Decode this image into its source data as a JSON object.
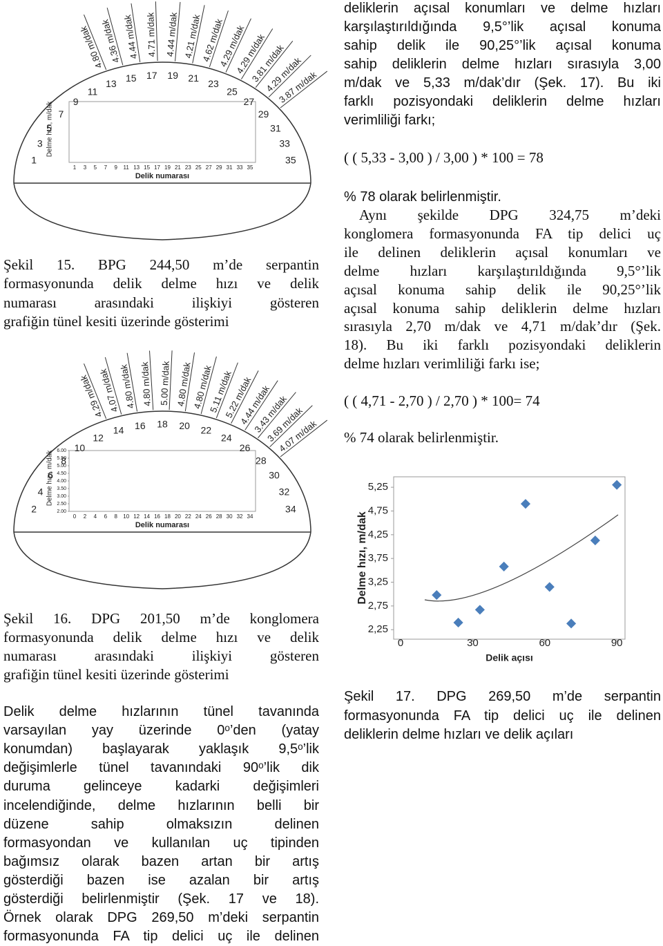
{
  "right_column": {
    "paragraph_1": [
      "deliklerin açısal konumları ve delme hızları",
      "karşılaştırıldığında 9,5°’lik açısal konuma",
      "sahip delik ile 90,25°’lik açısal konuma",
      "sahip deliklerin delme hızları sırasıyla 3,00",
      "m/dak ve 5,33 m/dak’dır (Şek. 17). Bu iki",
      "farklı pozisyondaki deliklerin delme hızları",
      "verimliliği farkı;"
    ],
    "formula_1": "( ( 5,33 - 3,00 ) / 3,00 ) * 100 = 78",
    "result_1": "% 78 olarak belirlenmiştir.",
    "paragraph_2": [
      "Aynı şekilde DPG 324,75 m’deki",
      "konglomera formasyonunda FA tip delici uç",
      "ile delinen deliklerin açısal konumları ve",
      "delme hızları karşılaştırıldığında 9,5°’lik",
      "açısal konuma sahip delik ile 90,25°’lik",
      "açısal konuma sahip deliklerin delme hızları",
      "sırasıyla 2,70 m/dak ve 4,71 m/dak’dır (Şek.",
      "18). Bu iki farklı pozisyondaki deliklerin",
      "delme hızları verimliliği farkı ise;"
    ],
    "formula_2": "( ( 4,71 - 2,70 ) / 2,70 ) * 100= 74",
    "result_2": "% 74 olarak belirlenmiştir.",
    "figure_17_caption": [
      "Şekil 17. DPG 269,50 m’de serpantin",
      "formasyonunda FA tip delici uç ile delinen",
      "deliklerin delme hızları ve delik açıları"
    ]
  },
  "left_column": {
    "figure_15_caption": [
      "Şekil 15. BPG 244,50 m’de serpantin",
      "formasyonunda delik delme hızı ve delik",
      "numarası arasındaki ilişkiyi gösteren",
      "grafiğin tünel kesiti üzerinde gösterimi"
    ],
    "figure_16_caption": [
      "Şekil 16. DPG 201,50 m’de konglomera",
      "formasyonunda delik delme hızı ve delik",
      "numarası arasındaki ilişkiyi gösteren",
      "grafiğin tünel kesiti üzerinde gösterimi"
    ],
    "paragraph": [
      "Delik delme hızlarının tünel tavanında",
      "varsayılan yay üzerinde 0ᵒ’den (yatay",
      "konumdan) başlayarak yaklaşık 9,5ᵒ’lik",
      "değişimlerle tünel tavanındaki 90ᵒ’lik dik",
      "duruma gelinceye kadarki değişimleri",
      "incelendiğinde, delme hızlarının belli bir",
      "düzene sahip olmaksızın delinen",
      "formasyondan ve kullanılan uç tipinden",
      "bağımsız olarak bazen artan bir artış",
      "gösterdiği bazen ise azalan bir artış",
      "gösterdiği belirlenmiştir (Şek. 17 ve 18).",
      "Örnek olarak DPG 269,50 m’deki serpantin",
      "formasyonunda FA tip delici uç ile delinen"
    ]
  },
  "figure_15": {
    "hole_numbers": [
      1,
      3,
      5,
      7,
      9,
      11,
      13,
      15,
      17,
      19,
      21,
      23,
      25,
      27,
      29,
      31,
      33,
      35
    ],
    "rate_labels": [
      "4.80 m/dak",
      "4.36 m/dak",
      "4.44 m/dak",
      "4.71 m/dak",
      "4.44 m/dak",
      "4.21 m/dak",
      "4.62 m/dak",
      "4.29 m/dak",
      "4.29 m/dak",
      "3.81 m/dak",
      "4.29 m/dak",
      "3.87 m/dak"
    ],
    "x_ticks": [
      1,
      3,
      5,
      7,
      9,
      11,
      13,
      15,
      17,
      19,
      21,
      23,
      25,
      27,
      29,
      31,
      33,
      35
    ],
    "x_label": "Delik numarası",
    "y_label": "Delme hızı, m/dak"
  },
  "figure_16": {
    "hole_numbers": [
      2,
      4,
      6,
      8,
      10,
      12,
      14,
      16,
      18,
      20,
      22,
      24,
      26,
      28,
      30,
      32,
      34
    ],
    "rate_labels": [
      "4.29 m/dak",
      "4.07 m/dak",
      "4.80 m/dak",
      "4.80 m/dak",
      "5.00 m/dak",
      "4.80 m/dak",
      "4.80 m/dak",
      "5.11 m/dak",
      "5.22 m/dak",
      "4.44 m/dak",
      "3.43 m/dak",
      "3.69 m/dak",
      "4.07 m/dak"
    ],
    "x_ticks": [
      0,
      2,
      4,
      6,
      8,
      10,
      12,
      14,
      16,
      18,
      20,
      22,
      24,
      26,
      28,
      30,
      32,
      34
    ],
    "x_label": "Delik numarası",
    "y_label": "Delme hızı, m/dak",
    "ylim": [
      2,
      6
    ],
    "yticks": [
      {
        "value": 6,
        "label": "6.00"
      },
      {
        "value": 5.5,
        "label": "5.50"
      },
      {
        "value": 5,
        "label": "5.00"
      },
      {
        "value": 4.5,
        "label": "4.50"
      },
      {
        "value": 4,
        "label": "4.00"
      },
      {
        "value": 3.5,
        "label": "3.50"
      },
      {
        "value": 3,
        "label": "3.00"
      },
      {
        "value": 2.5,
        "label": "2.50"
      },
      {
        "value": 2,
        "label": "2.00"
      }
    ]
  },
  "chart_data": {
    "type": "scatter",
    "x_label": "Delik açısı",
    "y_label": "Delme hızı, m/dak",
    "x": [
      15,
      24,
      33,
      43,
      52,
      62,
      71,
      81,
      90
    ],
    "values": [
      2.98,
      2.4,
      2.67,
      3.58,
      4.9,
      3.15,
      2.38,
      4.13,
      5.3
    ],
    "color": "#4a7ebb",
    "xlim": [
      -2.9,
      93.4
    ],
    "ylim": [
      2.05,
      5.47
    ],
    "xticks": [
      0,
      30,
      60,
      90
    ],
    "yticks": [
      {
        "value": 2.25,
        "label": "2,25"
      },
      {
        "value": 2.75,
        "label": "2,75"
      },
      {
        "value": 3.25,
        "label": "3,25"
      },
      {
        "value": 3.75,
        "label": "3,75"
      },
      {
        "value": 4.25,
        "label": "4,25"
      },
      {
        "value": 4.75,
        "label": "4,75"
      },
      {
        "value": 5.25,
        "label": "5,25"
      }
    ]
  }
}
